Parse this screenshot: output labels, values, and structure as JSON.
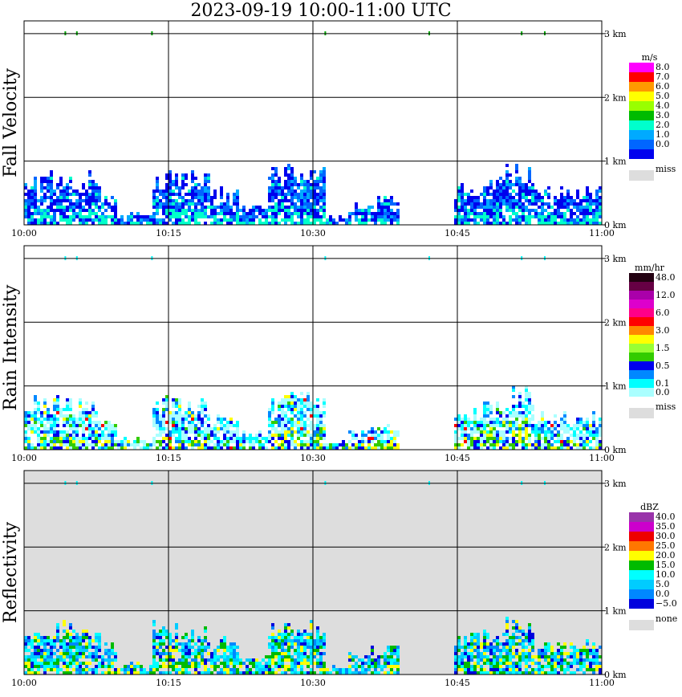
{
  "title": "2023-09-19   10:00-11:00 UTC",
  "chart_data": [
    {
      "type": "heatmap",
      "ylabel": "Fall Velocity",
      "units": "m/s",
      "xticks": [
        "10:00",
        "10:15",
        "10:30",
        "10:45",
        "11:00"
      ],
      "yticks": [
        "0 km",
        "1 km",
        "2 km",
        "3 km"
      ],
      "ylim": [
        0,
        3.2
      ],
      "grid": true,
      "background": "#ffffff",
      "scale": [
        {
          "label": "8.0",
          "color": "#ff00ff"
        },
        {
          "label": "7.0",
          "color": "#ff0000"
        },
        {
          "label": "6.0",
          "color": "#ff9900"
        },
        {
          "label": "5.0",
          "color": "#ffff00"
        },
        {
          "label": "4.0",
          "color": "#99ff00"
        },
        {
          "label": "3.0",
          "color": "#00bb00"
        },
        {
          "label": "2.0",
          "color": "#00ffcc"
        },
        {
          "label": "1.0",
          "color": "#00aaff"
        },
        {
          "label": "0.0",
          "color": "#0066ff"
        },
        {
          "label": "",
          "color": "#0000ee"
        }
      ],
      "miss_label": "miss",
      "echo_palette": [
        "#0000ee",
        "#0066ff",
        "#00aaff",
        "#00ffcc"
      ],
      "echo_weights": [
        0.45,
        0.3,
        0.18,
        0.07
      ]
    },
    {
      "type": "heatmap",
      "ylabel": "Rain Intensity",
      "units": "mm/hr",
      "xticks": [
        "10:00",
        "10:15",
        "10:30",
        "10:45",
        "11:00"
      ],
      "yticks": [
        "0 km",
        "1 km",
        "2 km",
        "3 km"
      ],
      "ylim": [
        0,
        3.2
      ],
      "grid": true,
      "background": "#ffffff",
      "scale": [
        {
          "label": "48.0",
          "color": "#220011"
        },
        {
          "label": "",
          "color": "#660044"
        },
        {
          "label": "12.0",
          "color": "#aa00aa"
        },
        {
          "label": "",
          "color": "#dd00cc"
        },
        {
          "label": "6.0",
          "color": "#ff0088"
        },
        {
          "label": "",
          "color": "#ff0000"
        },
        {
          "label": "3.0",
          "color": "#ff8800"
        },
        {
          "label": "",
          "color": "#ffff00"
        },
        {
          "label": "1.5",
          "color": "#99ff33"
        },
        {
          "label": "",
          "color": "#33cc00"
        },
        {
          "label": "0.5",
          "color": "#0000ee"
        },
        {
          "label": "",
          "color": "#0088ff"
        },
        {
          "label": "0.1",
          "color": "#00ffff"
        },
        {
          "label": "0.0",
          "color": "#aaffff"
        }
      ],
      "miss_label": "miss",
      "echo_palette": [
        "#aaffff",
        "#00ffff",
        "#0088ff",
        "#0000ee",
        "#33cc00",
        "#ffff00",
        "#ff0000"
      ],
      "echo_weights": [
        0.4,
        0.25,
        0.15,
        0.1,
        0.05,
        0.03,
        0.02
      ]
    },
    {
      "type": "heatmap",
      "ylabel": "Reflectivity",
      "units": "dBZ",
      "xticks": [
        "10:00",
        "10:15",
        "10:30",
        "10:45",
        "11:00"
      ],
      "yticks": [
        "0 km",
        "1 km",
        "2 km",
        "3 km"
      ],
      "ylim": [
        0,
        3.2
      ],
      "grid": true,
      "background": "#dddddd",
      "scale": [
        {
          "label": "40.0",
          "color": "#9933aa"
        },
        {
          "label": "35.0",
          "color": "#cc00cc"
        },
        {
          "label": "30.0",
          "color": "#ee0000"
        },
        {
          "label": "25.0",
          "color": "#ff7700"
        },
        {
          "label": "20.0",
          "color": "#ffff00"
        },
        {
          "label": "15.0",
          "color": "#00bb00"
        },
        {
          "label": "10.0",
          "color": "#00ffff"
        },
        {
          "label": "5.0",
          "color": "#00ccff"
        },
        {
          "label": "0.0",
          "color": "#0088ff"
        },
        {
          "label": "−5.0",
          "color": "#0000dd"
        }
      ],
      "miss_label": "none",
      "echo_palette": [
        "#0000dd",
        "#0088ff",
        "#00ccff",
        "#00ffff",
        "#00bb00",
        "#ffff00"
      ],
      "echo_weights": [
        0.15,
        0.15,
        0.22,
        0.22,
        0.16,
        0.1
      ]
    }
  ]
}
